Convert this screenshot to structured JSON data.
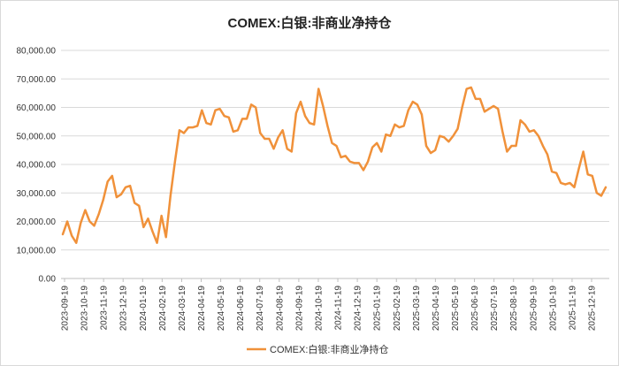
{
  "chart_data": {
    "type": "line",
    "title": "COMEX:白银:非商业净持仓",
    "xlabel": "",
    "ylabel": "",
    "ylim": [
      0,
      80000
    ],
    "yticks": [
      "0.00",
      "10,000.00",
      "20,000.00",
      "30,000.00",
      "40,000.00",
      "50,000.00",
      "60,000.00",
      "70,000.00",
      "80,000.00"
    ],
    "ytick_values": [
      0,
      10000,
      20000,
      30000,
      40000,
      50000,
      60000,
      70000,
      80000
    ],
    "xticks": [
      "2023-09-19",
      "2023-10-19",
      "2023-11-19",
      "2023-12-19",
      "2024-01-19",
      "2024-02-19",
      "2024-03-19",
      "2024-04-19",
      "2024-05-19",
      "2024-06-19",
      "2024-07-19",
      "2024-08-19",
      "2024-09-19",
      "2024-10-19",
      "2024-11-19",
      "2024-12-19",
      "2025-01-19",
      "2025-02-19",
      "2025-03-19",
      "2025-04-19",
      "2025-05-19",
      "2025-06-19",
      "2025-07-19",
      "2025-08-19",
      "2025-09-19",
      "2025-10-19",
      "2025-11-19",
      "2025-12-19"
    ],
    "grid": true,
    "legend": "bottom",
    "color": "#f0913a",
    "series": [
      {
        "name": "COMEX:白银:非商业净持仓",
        "values": [
          15500,
          20000,
          15000,
          12500,
          19500,
          24000,
          20000,
          18500,
          22500,
          27500,
          34000,
          36000,
          28500,
          29500,
          32000,
          32500,
          26500,
          25500,
          18000,
          21000,
          16500,
          12500,
          22000,
          14500,
          29000,
          41000,
          52000,
          51000,
          53000,
          53000,
          53500,
          59000,
          54500,
          54000,
          59000,
          59500,
          57000,
          56500,
          51500,
          52000,
          56000,
          56000,
          61000,
          60000,
          51000,
          49000,
          49000,
          45500,
          49500,
          52000,
          45500,
          44500,
          58000,
          62000,
          57000,
          54500,
          54000,
          66500,
          60500,
          53500,
          47500,
          46500,
          42500,
          43000,
          41000,
          40500,
          40500,
          38000,
          41000,
          46000,
          47500,
          44500,
          50500,
          50000,
          54000,
          53000,
          53500,
          59000,
          62000,
          61000,
          57500,
          46500,
          44000,
          45000,
          50000,
          49500,
          48000,
          50000,
          52500,
          60000,
          66500,
          67000,
          63000,
          63000,
          58500,
          59500,
          60500,
          59500,
          51500,
          44500,
          46500,
          46500,
          55500,
          54000,
          51500,
          52000,
          50000,
          46500,
          43500,
          37500,
          37000,
          33500,
          33000,
          33500,
          32000,
          38500,
          44500,
          36500,
          36000,
          30000,
          29000,
          32000
        ]
      }
    ]
  }
}
